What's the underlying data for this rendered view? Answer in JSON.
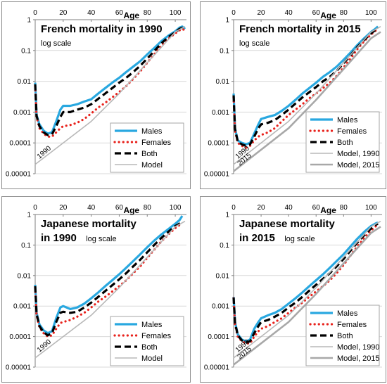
{
  "figure": {
    "xlabel": "Age"
  },
  "styles": {
    "Males": {
      "color": "#29a8e0",
      "width": 3.2,
      "dash": ""
    },
    "Females": {
      "color": "#e8221c",
      "width": 3.2,
      "dash": "0.1 6",
      "round": true
    },
    "Both": {
      "color": "#000000",
      "width": 3.2,
      "dash": "9 5"
    },
    "Model": {
      "color": "#b8b8b8",
      "width": 1.6,
      "dash": ""
    },
    "Model, 1990": {
      "color": "#b8b8b8",
      "width": 1.6,
      "dash": ""
    },
    "Model, 2015": {
      "color": "#a8a8a8",
      "width": 2.6,
      "dash": ""
    }
  },
  "chart_data": [
    {
      "type": "line",
      "title": "French mortality in 1990",
      "subtitle": "log scale",
      "xlabel": "Age",
      "xlim": [
        0,
        108
      ],
      "ylim": [
        1e-05,
        1
      ],
      "yscale": "log",
      "xticks": [
        0,
        20,
        40,
        60,
        80,
        100
      ],
      "yticks": [
        "1",
        "0.1",
        "0.01",
        "0.001",
        "0.0001",
        "0.00001"
      ],
      "legend": [
        "Males",
        "Females",
        "Both",
        "Model"
      ],
      "annotations": [
        "1990"
      ],
      "series": [
        {
          "name": "Males",
          "x": [
            0,
            1,
            3,
            6,
            9,
            12,
            15,
            18,
            20,
            25,
            30,
            35,
            40,
            45,
            50,
            55,
            60,
            65,
            70,
            75,
            80,
            85,
            90,
            95,
            100,
            103,
            105,
            107
          ],
          "y": [
            0.009,
            0.0008,
            0.0004,
            0.00025,
            0.0002,
            0.00022,
            0.0005,
            0.0012,
            0.0016,
            0.0016,
            0.0018,
            0.0022,
            0.0026,
            0.004,
            0.006,
            0.009,
            0.013,
            0.02,
            0.03,
            0.045,
            0.075,
            0.12,
            0.2,
            0.3,
            0.42,
            0.55,
            0.6,
            0.5
          ]
        },
        {
          "name": "Females",
          "x": [
            0,
            1,
            3,
            6,
            9,
            12,
            15,
            18,
            20,
            25,
            30,
            35,
            40,
            45,
            50,
            55,
            60,
            65,
            70,
            75,
            80,
            85,
            90,
            95,
            100,
            103,
            105,
            107
          ],
          "y": [
            0.007,
            0.0007,
            0.0003,
            0.0002,
            0.00016,
            0.00016,
            0.00022,
            0.0003,
            0.00035,
            0.00038,
            0.00045,
            0.0006,
            0.0009,
            0.0014,
            0.002,
            0.003,
            0.0045,
            0.007,
            0.012,
            0.021,
            0.04,
            0.075,
            0.14,
            0.24,
            0.36,
            0.45,
            0.5,
            0.45
          ]
        },
        {
          "name": "Both",
          "x": [
            0,
            1,
            3,
            6,
            9,
            12,
            15,
            18,
            20,
            25,
            30,
            35,
            40,
            45,
            50,
            55,
            60,
            65,
            70,
            75,
            80,
            85,
            90,
            95,
            100,
            103,
            105,
            107
          ],
          "y": [
            0.008,
            0.00075,
            0.00035,
            0.00022,
            0.00018,
            0.00019,
            0.00035,
            0.0007,
            0.001,
            0.001,
            0.0012,
            0.0014,
            0.0018,
            0.0027,
            0.004,
            0.006,
            0.009,
            0.013,
            0.02,
            0.032,
            0.055,
            0.095,
            0.17,
            0.27,
            0.39,
            0.5,
            0.55,
            0.48
          ]
        },
        {
          "name": "Model",
          "x": [
            0,
            20,
            40,
            60,
            80,
            100,
            107
          ],
          "y": [
            2e-05,
            0.0001,
            0.0005,
            0.004,
            0.04,
            0.4,
            0.6
          ]
        }
      ]
    },
    {
      "type": "line",
      "title": "French mortality in 2015",
      "subtitle": "log scale",
      "xlabel": "Age",
      "xlim": [
        0,
        108
      ],
      "ylim": [
        1e-05,
        1
      ],
      "yscale": "log",
      "xticks": [
        0,
        20,
        40,
        60,
        80,
        100
      ],
      "yticks": [
        "1",
        "0.1",
        "0.01",
        "0.001",
        "0.0001",
        "0.00001"
      ],
      "legend": [
        "Males",
        "Females",
        "Both",
        "Model, 1990",
        "Model, 2015"
      ],
      "annotations": [
        "1990",
        "2015"
      ],
      "series": [
        {
          "name": "Males",
          "x": [
            0,
            1,
            3,
            6,
            9,
            12,
            15,
            18,
            20,
            25,
            30,
            35,
            40,
            45,
            50,
            55,
            60,
            65,
            70,
            75,
            80,
            85,
            90,
            95,
            100,
            103,
            105
          ],
          "y": [
            0.004,
            0.0003,
            0.00012,
            0.0001,
            9e-05,
            0.0001,
            0.0002,
            0.0004,
            0.0006,
            0.0007,
            0.0008,
            0.0011,
            0.0016,
            0.0025,
            0.004,
            0.006,
            0.009,
            0.014,
            0.02,
            0.03,
            0.05,
            0.085,
            0.15,
            0.25,
            0.4,
            0.5,
            0.6
          ]
        },
        {
          "name": "Females",
          "x": [
            0,
            1,
            3,
            6,
            9,
            12,
            15,
            18,
            20,
            25,
            30,
            35,
            40,
            45,
            50,
            55,
            60,
            65,
            70,
            75,
            80,
            85,
            90,
            95,
            100,
            103,
            105
          ],
          "y": [
            0.003,
            0.00025,
            0.0001,
            8e-05,
            7e-05,
            8e-05,
            0.00012,
            0.00016,
            0.00018,
            0.00022,
            0.0003,
            0.0005,
            0.0008,
            0.0012,
            0.0018,
            0.0028,
            0.004,
            0.006,
            0.009,
            0.015,
            0.028,
            0.055,
            0.11,
            0.2,
            0.33,
            0.43,
            0.5
          ]
        },
        {
          "name": "Both",
          "x": [
            0,
            1,
            3,
            6,
            9,
            12,
            15,
            18,
            20,
            25,
            30,
            35,
            40,
            45,
            50,
            55,
            60,
            65,
            70,
            75,
            80,
            85,
            90,
            95,
            100,
            103,
            105
          ],
          "y": [
            0.0035,
            0.00028,
            0.00011,
            9e-05,
            8e-05,
            9e-05,
            0.00016,
            0.0003,
            0.0004,
            0.00045,
            0.00055,
            0.0008,
            0.0012,
            0.0019,
            0.003,
            0.0044,
            0.0065,
            0.01,
            0.014,
            0.022,
            0.038,
            0.07,
            0.13,
            0.22,
            0.36,
            0.46,
            0.55
          ]
        },
        {
          "name": "Model, 1990",
          "x": [
            0,
            20,
            40,
            60,
            80,
            100,
            107
          ],
          "y": [
            2e-05,
            0.0001,
            0.0005,
            0.004,
            0.04,
            0.4,
            0.6
          ]
        },
        {
          "name": "Model, 2015",
          "x": [
            0,
            20,
            40,
            60,
            80,
            100,
            107
          ],
          "y": [
            1.2e-05,
            6e-05,
            0.0003,
            0.0025,
            0.025,
            0.25,
            0.4
          ]
        }
      ]
    },
    {
      "type": "line",
      "title": "Japanese mortality in 1990",
      "subtitle": "log scale",
      "xlabel": "Age",
      "xlim": [
        0,
        108
      ],
      "ylim": [
        1e-05,
        1
      ],
      "yscale": "log",
      "xticks": [
        0,
        20,
        40,
        60,
        80,
        100
      ],
      "yticks": [
        "1",
        "0.1",
        "0.01",
        "0.001",
        "0.0001",
        "0.00001"
      ],
      "legend": [
        "Males",
        "Females",
        "Both",
        "Model"
      ],
      "annotations": [
        "1990"
      ],
      "series": [
        {
          "name": "Males",
          "x": [
            0,
            1,
            3,
            6,
            9,
            12,
            15,
            18,
            20,
            25,
            30,
            35,
            40,
            45,
            50,
            55,
            60,
            65,
            70,
            75,
            80,
            85,
            90,
            95,
            100,
            103,
            105
          ],
          "y": [
            0.005,
            0.0006,
            0.00025,
            0.00016,
            0.00013,
            0.00015,
            0.0004,
            0.0009,
            0.001,
            0.0008,
            0.0009,
            0.0012,
            0.0018,
            0.0028,
            0.0045,
            0.007,
            0.011,
            0.018,
            0.03,
            0.05,
            0.085,
            0.14,
            0.22,
            0.33,
            0.5,
            0.65,
            0.9
          ]
        },
        {
          "name": "Females",
          "x": [
            0,
            1,
            3,
            6,
            9,
            12,
            15,
            18,
            20,
            25,
            30,
            35,
            40,
            45,
            50,
            55,
            60,
            65,
            70,
            75,
            80,
            85,
            90,
            95,
            100,
            103,
            105
          ],
          "y": [
            0.004,
            0.0005,
            0.0002,
            0.00013,
            0.0001,
            0.00011,
            0.00018,
            0.00028,
            0.0003,
            0.00035,
            0.00045,
            0.0006,
            0.0009,
            0.0014,
            0.002,
            0.003,
            0.0045,
            0.007,
            0.012,
            0.02,
            0.038,
            0.07,
            0.13,
            0.22,
            0.36,
            0.45,
            0.45
          ]
        },
        {
          "name": "Both",
          "x": [
            0,
            1,
            3,
            6,
            9,
            12,
            15,
            18,
            20,
            25,
            30,
            35,
            40,
            45,
            50,
            55,
            60,
            65,
            70,
            75,
            80,
            85,
            90,
            95,
            100,
            103,
            105
          ],
          "y": [
            0.0045,
            0.00055,
            0.00022,
            0.00014,
            0.00011,
            0.00013,
            0.0003,
            0.0006,
            0.00065,
            0.0006,
            0.00065,
            0.0009,
            0.0013,
            0.002,
            0.0031,
            0.0048,
            0.0075,
            0.012,
            0.02,
            0.033,
            0.058,
            0.1,
            0.17,
            0.27,
            0.42,
            0.5,
            0.55
          ]
        },
        {
          "name": "Model",
          "x": [
            0,
            20,
            40,
            60,
            80,
            100,
            107
          ],
          "y": [
            2e-05,
            0.0001,
            0.0005,
            0.004,
            0.04,
            0.4,
            0.6
          ]
        }
      ]
    },
    {
      "type": "line",
      "title": "Japanese mortality in 2015",
      "subtitle": "log scale",
      "xlabel": "Age",
      "xlim": [
        0,
        108
      ],
      "ylim": [
        1e-05,
        1
      ],
      "yscale": "log",
      "xticks": [
        0,
        20,
        40,
        60,
        80,
        100
      ],
      "yticks": [
        "1",
        "0.1",
        "0.01",
        "0.001",
        "0.0001",
        "0.00001"
      ],
      "legend": [
        "Males",
        "Females",
        "Both",
        "Model, 1990",
        "Model, 2015"
      ],
      "annotations": [
        "1990",
        "2015"
      ],
      "series": [
        {
          "name": "Males",
          "x": [
            0,
            1,
            3,
            6,
            9,
            12,
            15,
            18,
            20,
            25,
            30,
            35,
            40,
            45,
            50,
            55,
            60,
            65,
            70,
            75,
            80,
            85,
            90,
            95,
            100,
            103,
            105
          ],
          "y": [
            0.002,
            0.0003,
            0.00012,
            8e-05,
            7e-05,
            8e-05,
            0.00018,
            0.0003,
            0.0004,
            0.0005,
            0.0006,
            0.0008,
            0.0012,
            0.0018,
            0.0028,
            0.0045,
            0.007,
            0.011,
            0.018,
            0.03,
            0.05,
            0.09,
            0.16,
            0.27,
            0.42,
            0.5,
            0.55
          ]
        },
        {
          "name": "Females",
          "x": [
            0,
            1,
            3,
            6,
            9,
            12,
            15,
            18,
            20,
            25,
            30,
            35,
            40,
            45,
            50,
            55,
            60,
            65,
            70,
            75,
            80,
            85,
            90,
            95,
            100,
            103,
            105
          ],
          "y": [
            0.0018,
            0.00025,
            0.0001,
            7e-05,
            6e-05,
            6e-05,
            0.0001,
            0.00015,
            0.00018,
            0.00022,
            0.0003,
            0.0004,
            0.0006,
            0.0009,
            0.0013,
            0.002,
            0.003,
            0.0045,
            0.007,
            0.012,
            0.022,
            0.045,
            0.09,
            0.17,
            0.3,
            0.4,
            0.45
          ]
        },
        {
          "name": "Both",
          "x": [
            0,
            1,
            3,
            6,
            9,
            12,
            15,
            18,
            20,
            25,
            30,
            35,
            40,
            45,
            50,
            55,
            60,
            65,
            70,
            75,
            80,
            85,
            90,
            95,
            100,
            103,
            105
          ],
          "y": [
            0.0019,
            0.00028,
            0.00011,
            7.5e-05,
            6.5e-05,
            7e-05,
            0.00013,
            0.00022,
            0.0003,
            0.00035,
            0.00045,
            0.0006,
            0.0009,
            0.0013,
            0.002,
            0.0032,
            0.005,
            0.0078,
            0.012,
            0.02,
            0.035,
            0.065,
            0.12,
            0.21,
            0.35,
            0.45,
            0.5
          ]
        },
        {
          "name": "Model, 1990",
          "x": [
            0,
            20,
            40,
            60,
            80,
            100,
            107
          ],
          "y": [
            2e-05,
            0.0001,
            0.0005,
            0.004,
            0.04,
            0.4,
            0.6
          ]
        },
        {
          "name": "Model, 2015",
          "x": [
            0,
            20,
            40,
            60,
            80,
            100,
            107
          ],
          "y": [
            1.2e-05,
            6e-05,
            0.0003,
            0.0025,
            0.025,
            0.25,
            0.4
          ]
        }
      ]
    }
  ]
}
